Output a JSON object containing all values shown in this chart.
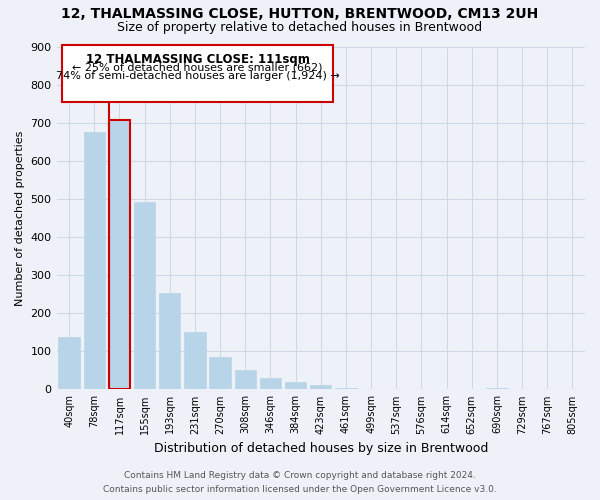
{
  "title": "12, THALMASSING CLOSE, HUTTON, BRENTWOOD, CM13 2UH",
  "subtitle": "Size of property relative to detached houses in Brentwood",
  "xlabel": "Distribution of detached houses by size in Brentwood",
  "ylabel": "Number of detached properties",
  "bar_labels": [
    "40sqm",
    "78sqm",
    "117sqm",
    "155sqm",
    "193sqm",
    "231sqm",
    "270sqm",
    "308sqm",
    "346sqm",
    "384sqm",
    "423sqm",
    "461sqm",
    "499sqm",
    "537sqm",
    "576sqm",
    "614sqm",
    "652sqm",
    "690sqm",
    "729sqm",
    "767sqm",
    "805sqm"
  ],
  "bar_values": [
    137,
    675,
    707,
    493,
    253,
    152,
    86,
    50,
    30,
    20,
    12,
    5,
    1,
    0,
    0,
    0,
    0,
    3,
    0,
    0,
    0
  ],
  "bar_color": "#b8d4e8",
  "bar_edge_color": "#b8d4e8",
  "highlight_bar_index": 2,
  "highlight_color": "#cc0000",
  "ylim": [
    0,
    900
  ],
  "yticks": [
    0,
    100,
    200,
    300,
    400,
    500,
    600,
    700,
    800,
    900
  ],
  "annotation_title": "12 THALMASSING CLOSE: 111sqm",
  "annotation_line1": "← 25% of detached houses are smaller (662)",
  "annotation_line2": "74% of semi-detached houses are larger (1,924) →",
  "annotation_box_color": "#ffffff",
  "annotation_box_edge": "#cc0000",
  "footer_line1": "Contains HM Land Registry data © Crown copyright and database right 2024.",
  "footer_line2": "Contains public sector information licensed under the Open Government Licence v3.0.",
  "grid_color": "#d0d8e8",
  "background_color": "#eef2f8"
}
